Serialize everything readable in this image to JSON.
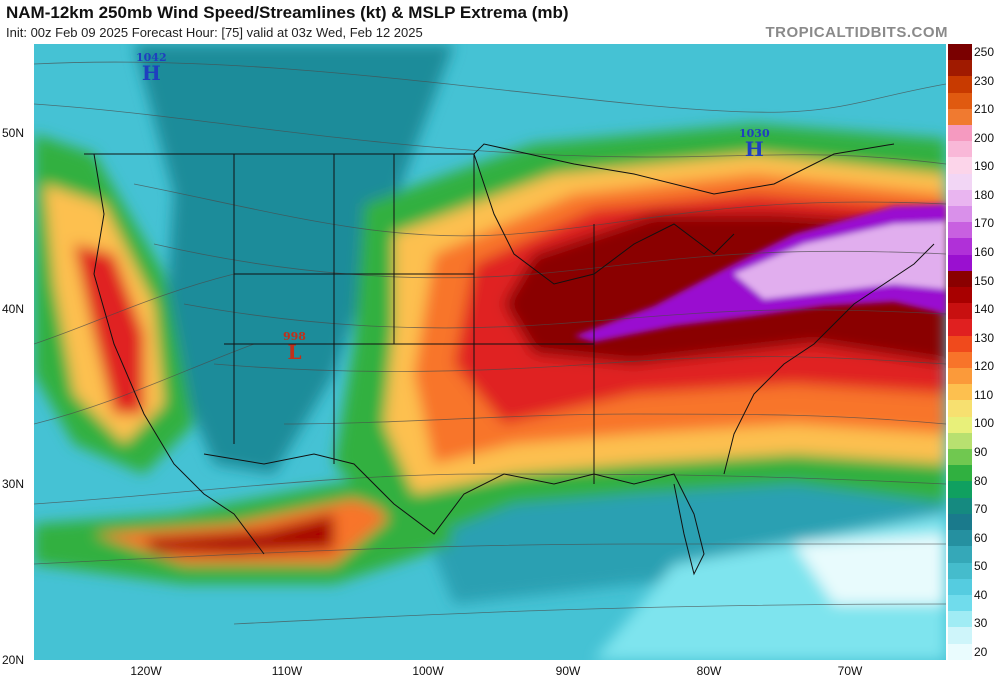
{
  "header": {
    "title": "NAM-12km 250mb Wind Speed/Streamlines (kt) & MSLP Extrema (mb)",
    "subtitle": "Init: 00z Feb 09 2025   Forecast Hour: [75]   valid at 03z Wed, Feb 12 2025",
    "brand": "TROPICALTIDBITS.COM"
  },
  "axes": {
    "lat_labels": [
      "50N",
      "40N",
      "30N",
      "20N"
    ],
    "lon_labels": [
      "120W",
      "110W",
      "100W",
      "90W",
      "80W",
      "70W"
    ]
  },
  "colorbar": {
    "labels": [
      "250",
      "230",
      "210",
      "200",
      "190",
      "180",
      "170",
      "160",
      "150",
      "140",
      "130",
      "120",
      "110",
      "100",
      "90",
      "80",
      "70",
      "60",
      "50",
      "40",
      "30",
      "20"
    ],
    "colors": [
      "#7a0000",
      "#a01a00",
      "#c83a00",
      "#e05a10",
      "#f07a30",
      "#f59ac0",
      "#f9b8d8",
      "#fcd5ea",
      "#f2d6f5",
      "#e9b5f0",
      "#d990ea",
      "#c860e0",
      "#b030d8",
      "#9a10d0",
      "#8a0000",
      "#a80000",
      "#c81010",
      "#e02020",
      "#f04a1c",
      "#f8742a",
      "#fb9a3a",
      "#fdc04f",
      "#f7e070",
      "#e8f07a",
      "#b8e070",
      "#70c850",
      "#30b040",
      "#10a060",
      "#158a80",
      "#1a7a8c",
      "#2590a0",
      "#35a8b8",
      "#45bccc",
      "#55cce0",
      "#70dcec",
      "#a0ecf4",
      "#cef5fa",
      "#eafcfe"
    ]
  },
  "pressure_centers": [
    {
      "type": "H",
      "value": "1042",
      "color": "#1f3fbf"
    },
    {
      "type": "H",
      "value": "1030",
      "color": "#1f3fbf"
    },
    {
      "type": "L",
      "value": "998",
      "color": "#c0301a"
    }
  ]
}
